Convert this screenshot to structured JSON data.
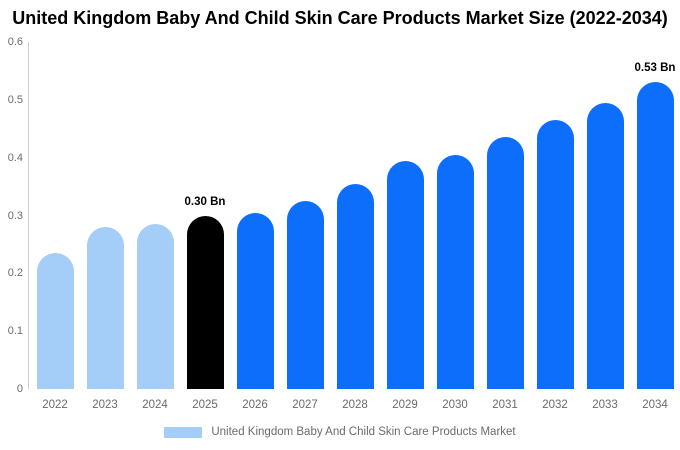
{
  "title": "United Kingdom Baby And Child Skin Care Products Market Size (2022-2034)",
  "colors": {
    "bar_historical": "#a4cdf8",
    "bar_current": "#000000",
    "bar_forecast": "#0d6efc",
    "axis_line": "#cccccc",
    "tick_text": "#6b6b6b",
    "annotation_text": "#000000"
  },
  "legend": {
    "items": [
      {
        "label": "United Kingdom Baby And Child Skin Care Products Market",
        "swatch_color": "#a4cdf8"
      }
    ]
  },
  "chart_data": {
    "type": "bar",
    "title": "United Kingdom Baby And Child Skin Care Products Market Size (2022-2034)",
    "xlabel": "",
    "ylabel": "",
    "ylim": [
      0,
      0.6
    ],
    "yticks": [
      "0",
      "0.1",
      "0.2",
      "0.3",
      "0.4",
      "0.5",
      "0.6"
    ],
    "grid": "off",
    "legend_position": "bottom",
    "categories": [
      "2022",
      "2023",
      "2024",
      "2025",
      "2026",
      "2027",
      "2028",
      "2029",
      "2030",
      "2031",
      "2032",
      "2033",
      "2034"
    ],
    "series": [
      {
        "name": "United Kingdom Baby And Child Skin Care Products Market",
        "values": [
          0.235,
          0.28,
          0.285,
          0.3,
          0.305,
          0.325,
          0.355,
          0.395,
          0.405,
          0.435,
          0.465,
          0.495,
          0.53
        ]
      }
    ],
    "bar_styles": [
      "historical",
      "historical",
      "historical",
      "current",
      "forecast",
      "forecast",
      "forecast",
      "forecast",
      "forecast",
      "forecast",
      "forecast",
      "forecast",
      "forecast"
    ],
    "annotations": [
      {
        "category": "2025",
        "label": "0.30 Bn"
      },
      {
        "category": "2034",
        "label": "0.53 Bn"
      }
    ]
  }
}
